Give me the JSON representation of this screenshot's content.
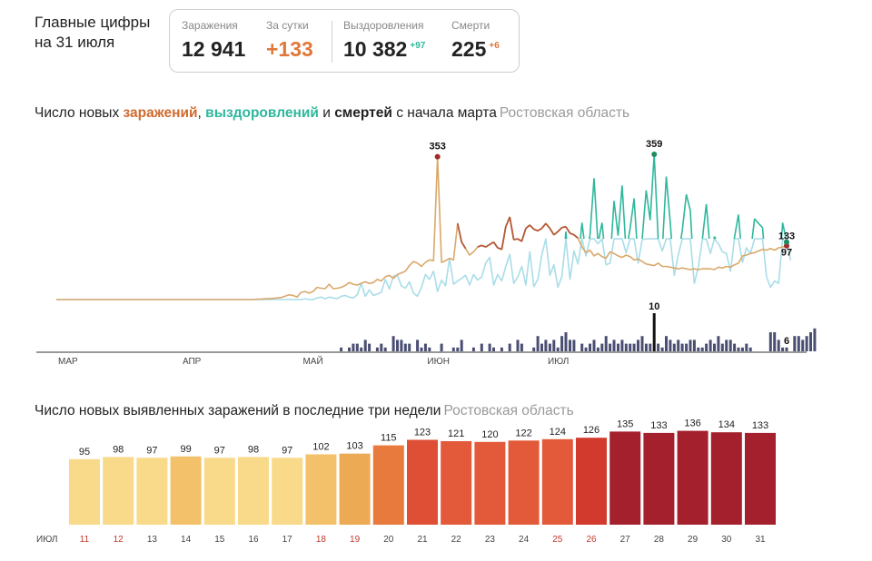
{
  "header": {
    "title_line1": "Главные цифры",
    "title_line2": "на 31 июля"
  },
  "stats": {
    "infections_label": "Заражения",
    "infections_value": "12 941",
    "daily_label": "За сутки",
    "daily_value": "+133",
    "recovered_label": "Выздоровления",
    "recovered_value": "10 382",
    "recovered_delta": "+97",
    "deaths_label": "Смерти",
    "deaths_value": "225",
    "deaths_delta": "+6"
  },
  "colors": {
    "infections": "#d9a86a",
    "infections_title": "#d06b2e",
    "recoveries": "#a9dde8",
    "recoveries_dark": "#2fb79c",
    "deaths": "#4a4e72",
    "peak_infections": "#a02a2a",
    "peak_recoveries": "#1e8a60"
  },
  "chart1": {
    "title_pre": "Число новых ",
    "title_infections": "заражений",
    "title_sep1": ", ",
    "title_recoveries": "выздоровлений",
    "title_sep2": " и ",
    "title_deaths": "смертей",
    "title_post": " с начала марта",
    "region": "Ростовская область"
  },
  "chart2": {
    "title": "Число новых выявленных заражений в последние три недели",
    "region": "Ростовская область"
  },
  "chart_data": [
    {
      "type": "line",
      "title": "Число новых заражений, выздоровлений и смертей с начала марта",
      "subtitle": "Ростовская область",
      "x_range": [
        "2020-03-01",
        "2020-07-31"
      ],
      "month_ticks": [
        "МАР",
        "АПР",
        "МАЙ",
        "ИЮН",
        "ИЮЛ"
      ],
      "ylim": [
        0,
        359
      ],
      "series": [
        {
          "key": "infections",
          "values": [
            0,
            0,
            0,
            0,
            0,
            0,
            0,
            0,
            0,
            0,
            0,
            0,
            0,
            0,
            0,
            0,
            0,
            0,
            0,
            0,
            0,
            0,
            0,
            0,
            0,
            0,
            0,
            0,
            0,
            0,
            0,
            0,
            0,
            0,
            0,
            0,
            0,
            0,
            0,
            0,
            0,
            0,
            0,
            0,
            0,
            0,
            0,
            0,
            0,
            0,
            1,
            1,
            2,
            2,
            3,
            4,
            5,
            8,
            12,
            10,
            6,
            18,
            20,
            16,
            20,
            30,
            28,
            27,
            38,
            27,
            28,
            30,
            35,
            42,
            38,
            36,
            40,
            44,
            40,
            42,
            50,
            46,
            56,
            60,
            52,
            62,
            66,
            70,
            84,
            94,
            90,
            82,
            92,
            98,
            96,
            353,
            92,
            96,
            102,
            98,
            188,
            142,
            126,
            110,
            118,
            130,
            134,
            130,
            136,
            142,
            128,
            124,
            180,
            204,
            148,
            150,
            144,
            176,
            184,
            174,
            170,
            176,
            188,
            176,
            160,
            168,
            178,
            180,
            164,
            160,
            152,
            130,
            116,
            122,
            108,
            114,
            106,
            102,
            118,
            114,
            108,
            104,
            110,
            106,
            98,
            100,
            94,
            88,
            86,
            84,
            90,
            82,
            82,
            80,
            78,
            76,
            78,
            76,
            74,
            76,
            74,
            76,
            76,
            76,
            74,
            80,
            78,
            82,
            80,
            86,
            90,
            108,
            110,
            114,
            116,
            120,
            124,
            122,
            126,
            122,
            128,
            130,
            133
          ]
        },
        {
          "key": "recoveries",
          "values": [
            0,
            0,
            0,
            0,
            0,
            0,
            0,
            0,
            0,
            0,
            0,
            0,
            0,
            0,
            0,
            0,
            0,
            0,
            0,
            0,
            0,
            0,
            0,
            0,
            0,
            0,
            0,
            0,
            0,
            0,
            0,
            0,
            0,
            0,
            0,
            0,
            0,
            0,
            0,
            0,
            0,
            0,
            0,
            0,
            0,
            0,
            0,
            0,
            0,
            0,
            0,
            0,
            0,
            0,
            0,
            0,
            0,
            0,
            0,
            0,
            0,
            0,
            2,
            0,
            0,
            4,
            6,
            2,
            6,
            4,
            2,
            8,
            10,
            6,
            4,
            12,
            40,
            8,
            24,
            10,
            14,
            18,
            50,
            26,
            58,
            60,
            34,
            28,
            44,
            16,
            8,
            30,
            62,
            50,
            70,
            20,
            48,
            34,
            102,
            38,
            46,
            52,
            60,
            36,
            62,
            48,
            56,
            90,
            104,
            36,
            62,
            46,
            82,
            112,
            40,
            56,
            82,
            36,
            118,
            32,
            50,
            110,
            150,
            60,
            86,
            30,
            58,
            168,
            50,
            120,
            88,
            190,
            108,
            158,
            300,
            138,
            190,
            86,
            90,
            244,
            158,
            282,
            116,
            176,
            250,
            90,
            148,
            270,
            196,
            359,
            150,
            120,
            304,
            190,
            60,
            110,
            170,
            260,
            220,
            40,
            80,
            148,
            236,
            114,
            156,
            138,
            118,
            114,
            70,
            154,
            210,
            92,
            128,
            114,
            200,
            188,
            178,
            56,
            30,
            46,
            40,
            190,
            142,
            97
          ]
        },
        {
          "key": "deaths",
          "values": [
            0,
            0,
            0,
            0,
            0,
            0,
            0,
            0,
            0,
            0,
            0,
            0,
            0,
            0,
            0,
            0,
            0,
            0,
            0,
            0,
            0,
            0,
            0,
            0,
            0,
            0,
            0,
            0,
            0,
            0,
            0,
            0,
            0,
            0,
            0,
            0,
            0,
            0,
            0,
            0,
            0,
            0,
            0,
            0,
            0,
            0,
            0,
            0,
            0,
            0,
            0,
            0,
            0,
            0,
            0,
            0,
            0,
            0,
            0,
            0,
            0,
            0,
            0,
            0,
            0,
            0,
            0,
            0,
            0,
            0,
            0,
            1,
            0,
            1,
            2,
            2,
            1,
            3,
            2,
            0,
            1,
            2,
            1,
            0,
            4,
            3,
            3,
            2,
            2,
            0,
            3,
            1,
            2,
            1,
            0,
            0,
            2,
            0,
            0,
            1,
            1,
            3,
            0,
            0,
            1,
            0,
            2,
            0,
            2,
            1,
            0,
            1,
            0,
            2,
            0,
            3,
            2,
            0,
            0,
            1,
            4,
            2,
            3,
            2,
            3,
            1,
            4,
            5,
            3,
            3,
            0,
            2,
            1,
            2,
            3,
            1,
            2,
            4,
            2,
            3,
            2,
            3,
            2,
            2,
            2,
            3,
            4,
            2,
            2,
            10,
            2,
            1,
            4,
            3,
            2,
            3,
            2,
            2,
            3,
            3,
            1,
            1,
            2,
            3,
            2,
            4,
            2,
            3,
            3,
            2,
            1,
            1,
            2,
            1,
            0,
            0,
            0,
            0,
            5,
            5,
            3,
            1,
            1,
            0,
            4,
            4,
            3,
            4,
            5,
            6
          ]
        }
      ],
      "annotations": [
        {
          "series": "infections",
          "value": 353
        },
        {
          "series": "recoveries",
          "value": 359
        },
        {
          "series": "infections",
          "value": 133
        },
        {
          "series": "recoveries",
          "value": 97
        },
        {
          "series": "deaths",
          "value": 10
        },
        {
          "series": "deaths",
          "value": 6
        }
      ]
    },
    {
      "type": "bar",
      "title": "Число новых выявленных заражений в последние три недели",
      "subtitle": "Ростовская область",
      "x_month_label": "ИЮЛ",
      "categories": [
        "11",
        "12",
        "13",
        "14",
        "15",
        "16",
        "17",
        "18",
        "19",
        "20",
        "21",
        "22",
        "23",
        "24",
        "25",
        "26",
        "27",
        "28",
        "29",
        "30",
        "31"
      ],
      "values": [
        95,
        98,
        97,
        99,
        97,
        98,
        97,
        102,
        103,
        115,
        123,
        121,
        120,
        122,
        124,
        126,
        135,
        133,
        136,
        134,
        133
      ],
      "weekend_labels": [
        "11",
        "12",
        "18",
        "19",
        "25",
        "26"
      ],
      "bar_colors": [
        "#f8da8a",
        "#f8da8a",
        "#f8da8a",
        "#f4c16b",
        "#f8da8a",
        "#f8da8a",
        "#f8da8a",
        "#f4c16b",
        "#edaa55",
        "#e97a3d",
        "#de4f36",
        "#e35a3a",
        "#e35a3a",
        "#e35a3a",
        "#e35a3a",
        "#d23a2e",
        "#a4202d",
        "#a4202d",
        "#a4202d",
        "#a4202d",
        "#a4202d"
      ],
      "weekend_label_color": "#c0392b",
      "label_color": "#444444"
    }
  ]
}
